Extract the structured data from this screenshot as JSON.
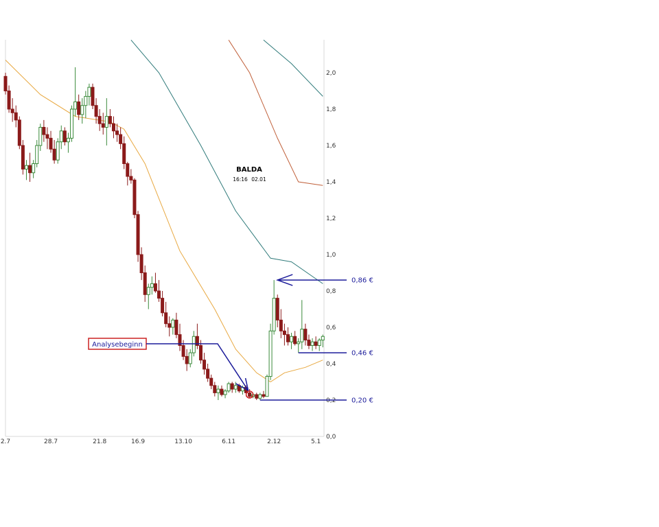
{
  "chart_data": {
    "type": "candlestick",
    "title": "BALDA",
    "subtitle_time": "16:16",
    "subtitle_date": "02.01",
    "ylim": [
      0.0,
      2.2
    ],
    "y_ticks": [
      "0,0",
      "0,2",
      "0,4",
      "0,6",
      "0,8",
      "1,0",
      "1,2",
      "1,4",
      "1,6",
      "1,8",
      "2,0"
    ],
    "y_tick_values": [
      0.0,
      0.2,
      0.4,
      0.6,
      0.8,
      1.0,
      1.2,
      1.4,
      1.6,
      1.8,
      2.0
    ],
    "x_ticks": [
      "2.7",
      "28.7",
      "21.8",
      "16.9",
      "13.10",
      "6.11",
      "2.12",
      "5.1"
    ],
    "grid": false,
    "colors": {
      "up": "#3a8a3a",
      "down": "#8b1a1a",
      "ma_fast": "#e8a840",
      "ma_mid": "#2f7a7a",
      "ma_slow": "#c0603a",
      "annotation": "#1b1b9a",
      "box": "#cc2222"
    },
    "candles": [
      [
        1.98,
        2.0,
        1.88,
        1.9
      ],
      [
        1.9,
        1.93,
        1.78,
        1.8
      ],
      [
        1.8,
        1.86,
        1.73,
        1.78
      ],
      [
        1.78,
        1.82,
        1.7,
        1.74
      ],
      [
        1.74,
        1.76,
        1.58,
        1.6
      ],
      [
        1.6,
        1.63,
        1.44,
        1.47
      ],
      [
        1.47,
        1.52,
        1.41,
        1.49
      ],
      [
        1.49,
        1.56,
        1.4,
        1.45
      ],
      [
        1.45,
        1.52,
        1.42,
        1.5
      ],
      [
        1.5,
        1.63,
        1.48,
        1.6
      ],
      [
        1.6,
        1.72,
        1.57,
        1.7
      ],
      [
        1.7,
        1.74,
        1.62,
        1.66
      ],
      [
        1.66,
        1.7,
        1.58,
        1.64
      ],
      [
        1.64,
        1.68,
        1.56,
        1.58
      ],
      [
        1.58,
        1.63,
        1.5,
        1.52
      ],
      [
        1.52,
        1.64,
        1.5,
        1.62
      ],
      [
        1.62,
        1.71,
        1.58,
        1.68
      ],
      [
        1.68,
        1.7,
        1.6,
        1.62
      ],
      [
        1.62,
        1.67,
        1.56,
        1.64
      ],
      [
        1.64,
        1.82,
        1.62,
        1.8
      ],
      [
        1.8,
        2.03,
        1.76,
        1.84
      ],
      [
        1.84,
        1.88,
        1.74,
        1.77
      ],
      [
        1.77,
        1.86,
        1.72,
        1.82
      ],
      [
        1.82,
        1.9,
        1.75,
        1.87
      ],
      [
        1.87,
        1.94,
        1.82,
        1.92
      ],
      [
        1.92,
        1.94,
        1.8,
        1.82
      ],
      [
        1.82,
        1.86,
        1.72,
        1.76
      ],
      [
        1.76,
        1.8,
        1.68,
        1.72
      ],
      [
        1.72,
        1.78,
        1.66,
        1.7
      ],
      [
        1.7,
        1.86,
        1.6,
        1.76
      ],
      [
        1.76,
        1.8,
        1.7,
        1.72
      ],
      [
        1.72,
        1.76,
        1.64,
        1.68
      ],
      [
        1.68,
        1.72,
        1.62,
        1.66
      ],
      [
        1.66,
        1.7,
        1.58,
        1.61
      ],
      [
        1.61,
        1.65,
        1.47,
        1.5
      ],
      [
        1.5,
        1.51,
        1.38,
        1.43
      ],
      [
        1.43,
        1.47,
        1.39,
        1.41
      ],
      [
        1.41,
        1.42,
        1.2,
        1.22
      ],
      [
        1.22,
        1.24,
        0.96,
        1.0
      ],
      [
        1.0,
        1.04,
        0.86,
        0.9
      ],
      [
        0.9,
        0.94,
        0.74,
        0.78
      ],
      [
        0.78,
        0.84,
        0.7,
        0.82
      ],
      [
        0.82,
        0.88,
        0.78,
        0.84
      ],
      [
        0.84,
        0.9,
        0.79,
        0.8
      ],
      [
        0.8,
        0.86,
        0.74,
        0.76
      ],
      [
        0.76,
        0.8,
        0.66,
        0.68
      ],
      [
        0.68,
        0.74,
        0.6,
        0.62
      ],
      [
        0.62,
        0.66,
        0.55,
        0.6
      ],
      [
        0.6,
        0.65,
        0.56,
        0.64
      ],
      [
        0.64,
        0.68,
        0.54,
        0.56
      ],
      [
        0.56,
        0.62,
        0.47,
        0.5
      ],
      [
        0.5,
        0.53,
        0.42,
        0.44
      ],
      [
        0.44,
        0.48,
        0.36,
        0.4
      ],
      [
        0.4,
        0.48,
        0.38,
        0.46
      ],
      [
        0.46,
        0.58,
        0.44,
        0.55
      ],
      [
        0.55,
        0.62,
        0.48,
        0.5
      ],
      [
        0.5,
        0.53,
        0.4,
        0.42
      ],
      [
        0.42,
        0.46,
        0.34,
        0.37
      ],
      [
        0.37,
        0.4,
        0.3,
        0.32
      ],
      [
        0.32,
        0.34,
        0.26,
        0.28
      ],
      [
        0.28,
        0.3,
        0.22,
        0.24
      ],
      [
        0.24,
        0.28,
        0.2,
        0.26
      ],
      [
        0.26,
        0.28,
        0.22,
        0.23
      ],
      [
        0.23,
        0.26,
        0.21,
        0.25
      ],
      [
        0.25,
        0.3,
        0.24,
        0.29
      ],
      [
        0.29,
        0.3,
        0.24,
        0.26
      ],
      [
        0.26,
        0.3,
        0.24,
        0.28
      ],
      [
        0.28,
        0.29,
        0.24,
        0.25
      ],
      [
        0.25,
        0.28,
        0.23,
        0.27
      ],
      [
        0.27,
        0.28,
        0.22,
        0.24
      ],
      [
        0.24,
        0.26,
        0.21,
        0.22
      ],
      [
        0.22,
        0.24,
        0.21,
        0.23
      ],
      [
        0.23,
        0.24,
        0.2,
        0.21
      ],
      [
        0.21,
        0.24,
        0.2,
        0.23
      ],
      [
        0.23,
        0.25,
        0.21,
        0.22
      ],
      [
        0.22,
        0.34,
        0.22,
        0.33
      ],
      [
        0.33,
        0.62,
        0.31,
        0.58
      ],
      [
        0.58,
        0.86,
        0.56,
        0.76
      ],
      [
        0.76,
        0.78,
        0.6,
        0.64
      ],
      [
        0.64,
        0.7,
        0.54,
        0.58
      ],
      [
        0.58,
        0.62,
        0.5,
        0.56
      ],
      [
        0.56,
        0.6,
        0.5,
        0.52
      ],
      [
        0.52,
        0.57,
        0.48,
        0.55
      ],
      [
        0.55,
        0.58,
        0.5,
        0.51
      ],
      [
        0.51,
        0.54,
        0.46,
        0.52
      ],
      [
        0.52,
        0.75,
        0.48,
        0.59
      ],
      [
        0.59,
        0.62,
        0.5,
        0.53
      ],
      [
        0.53,
        0.56,
        0.48,
        0.5
      ],
      [
        0.5,
        0.54,
        0.47,
        0.52
      ],
      [
        0.52,
        0.55,
        0.48,
        0.5
      ],
      [
        0.5,
        0.54,
        0.47,
        0.53
      ],
      [
        0.53,
        0.56,
        0.49,
        0.55
      ]
    ],
    "ma_fast": [
      [
        0,
        2.07
      ],
      [
        10,
        1.88
      ],
      [
        20,
        1.76
      ],
      [
        30,
        1.73
      ],
      [
        34,
        1.69
      ],
      [
        40,
        1.5
      ],
      [
        50,
        1.02
      ],
      [
        60,
        0.7
      ],
      [
        66,
        0.48
      ],
      [
        72,
        0.35
      ],
      [
        76,
        0.3
      ],
      [
        80,
        0.35
      ],
      [
        86,
        0.38
      ],
      [
        91,
        0.42
      ]
    ],
    "ma_mid": [
      [
        36,
        2.18
      ],
      [
        44,
        2.0
      ],
      [
        56,
        1.6
      ],
      [
        66,
        1.24
      ],
      [
        76,
        0.98
      ],
      [
        82,
        0.96
      ],
      [
        91,
        0.84
      ]
    ],
    "ma_slow": [
      [
        64,
        2.18
      ],
      [
        70,
        2.0
      ],
      [
        78,
        1.64
      ],
      [
        84,
        1.4
      ],
      [
        91,
        1.38
      ]
    ],
    "ma_upper": [
      [
        74,
        2.18
      ],
      [
        82,
        2.05
      ],
      [
        91,
        1.87
      ]
    ],
    "levels": [
      {
        "value": 0.86,
        "label": "0,86 €",
        "from_candle": 78
      },
      {
        "value": 0.46,
        "label": "0,46 €",
        "from_candle": 84
      },
      {
        "value": 0.2,
        "label": "0,20 €",
        "from_candle": 73
      }
    ],
    "annotation": {
      "label": "Analysebeginn",
      "target_candle": 70,
      "target_value": 0.23
    }
  }
}
